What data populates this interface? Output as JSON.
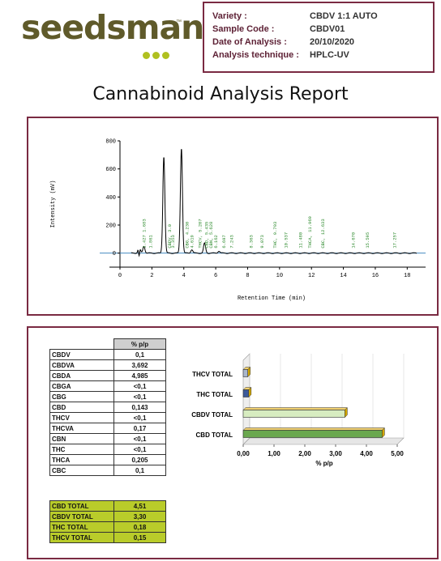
{
  "brand": {
    "name": "seedsman",
    "trademark": "™",
    "dot_color": "#b0c020",
    "text_color": "#5f5a2a"
  },
  "info": [
    {
      "label": "Variety :",
      "value": "CBDV 1:1 AUTO"
    },
    {
      "label": "Sample Code :",
      "value": "CBDV01"
    },
    {
      "label": "Date of Analysis :",
      "value": "20/10/2020"
    },
    {
      "label": "Analysis technique :",
      "value": "HPLC-UV"
    }
  ],
  "report_title": "Cannabinoid Analysis Report",
  "chart_data": [
    {
      "type": "line",
      "xlabel": "Retention Time (min)",
      "ylabel": "Intensity (mV)",
      "xlim": [
        0,
        19
      ],
      "ylim": [
        -100,
        800
      ],
      "x_ticks": [
        "0",
        "2",
        "4",
        "6",
        "8",
        "10",
        "12",
        "14",
        "16",
        "18"
      ],
      "y_ticks": [
        "0",
        "200",
        "400",
        "600",
        "800"
      ],
      "peaks": [
        {
          "x": 1.2,
          "y": 60
        },
        {
          "x": 1.5,
          "y": 50
        },
        {
          "x": 2.75,
          "y": 690
        },
        {
          "x": 3.85,
          "y": 750
        },
        {
          "x": 4.5,
          "y": 25
        },
        {
          "x": 5.3,
          "y": 70
        },
        {
          "x": 6.2,
          "y": 15
        }
      ],
      "peak_labels": [
        {
          "x": 1.6,
          "text": "1.427  1.683"
        },
        {
          "x": 2.0,
          "text": "1.861"
        },
        {
          "x": 3.2,
          "text": "CBDV, 3.0"
        },
        {
          "x": 3.4,
          "text": "3.353"
        },
        {
          "x": 4.3,
          "text": "CBG, 4.230"
        },
        {
          "x": 4.6,
          "text": "4.619"
        },
        {
          "x": 5.1,
          "text": "THCV, 5.207"
        },
        {
          "x": 5.5,
          "text": "CBD, 5.435"
        },
        {
          "x": 5.8,
          "text": "CBN, 5.628"
        },
        {
          "x": 6.1,
          "text": "6.162"
        },
        {
          "x": 6.6,
          "text": "6.697"
        },
        {
          "x": 7.1,
          "text": "7.243"
        },
        {
          "x": 8.3,
          "text": "8.363"
        },
        {
          "x": 9.0,
          "text": "9.073"
        },
        {
          "x": 9.8,
          "text": "THC, 9.793"
        },
        {
          "x": 10.5,
          "text": "10.537"
        },
        {
          "x": 11.4,
          "text": "11.480"
        },
        {
          "x": 12.0,
          "text": "THCA, 11.969"
        },
        {
          "x": 12.8,
          "text": "CBC, 12.633"
        },
        {
          "x": 14.7,
          "text": "14.670"
        },
        {
          "x": 15.6,
          "text": "15.595"
        },
        {
          "x": 17.3,
          "text": "17.257"
        }
      ]
    },
    {
      "type": "bar",
      "orientation": "horizontal",
      "categories": [
        "THCV TOTAL",
        "THC TOTAL",
        "CBDV TOTAL",
        "CBD TOTAL"
      ],
      "values": [
        0.15,
        0.18,
        3.3,
        4.51
      ],
      "colors": [
        "#a9b6cc",
        "#3d5a9a",
        "#d7ecc0",
        "#6aa84f"
      ],
      "xlabel": "% p/p",
      "xlim": [
        0,
        5
      ],
      "x_ticks": [
        "0,00",
        "1,00",
        "2,00",
        "3,00",
        "4,00",
        "5,00"
      ]
    }
  ],
  "table": {
    "header": "% p/p",
    "rows": [
      {
        "name": "CBDV",
        "value": "0,1"
      },
      {
        "name": "CBDVA",
        "value": "3,692"
      },
      {
        "name": "CBDA",
        "value": "4,985"
      },
      {
        "name": "CBGA",
        "value": "<0,1"
      },
      {
        "name": "CBG",
        "value": "<0,1"
      },
      {
        "name": "CBD",
        "value": "0,143"
      },
      {
        "name": "THCV",
        "value": "<0,1"
      },
      {
        "name": "THCVA",
        "value": "0,17"
      },
      {
        "name": "CBN",
        "value": "<0,1"
      },
      {
        "name": "THC",
        "value": "<0,1"
      },
      {
        "name": "THCA",
        "value": "0,205"
      },
      {
        "name": "CBC",
        "value": "0,1"
      }
    ],
    "totals": [
      {
        "name": "CBD TOTAL",
        "value": "4,51"
      },
      {
        "name": "CBDV TOTAL",
        "value": "3,30"
      },
      {
        "name": "THC TOTAL",
        "value": "0,18"
      },
      {
        "name": "THCV TOTAL",
        "value": "0,15"
      }
    ]
  }
}
